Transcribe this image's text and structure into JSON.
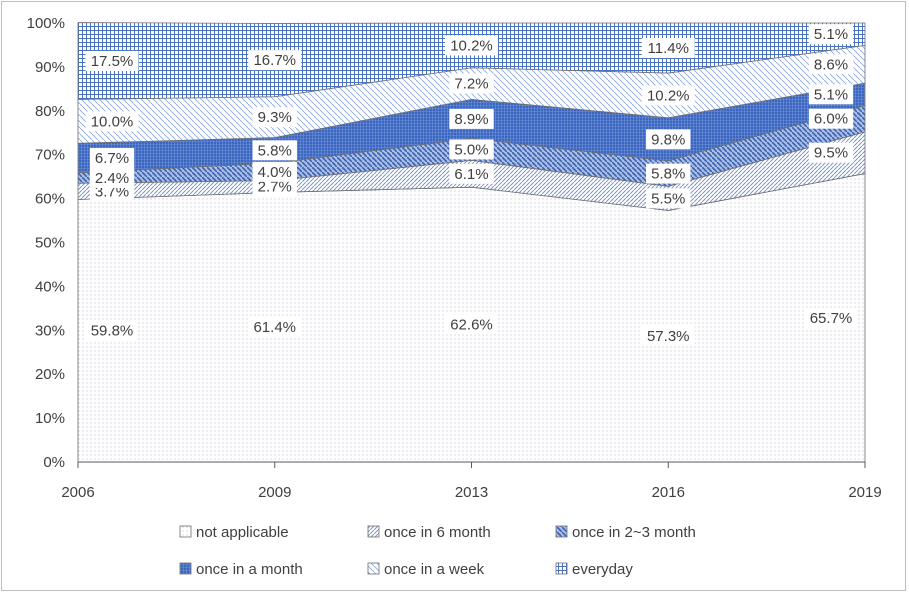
{
  "chart_data": {
    "type": "area",
    "stacked": true,
    "categories": [
      "2006",
      "2009",
      "2013",
      "2016",
      "2019"
    ],
    "series": [
      {
        "name": "not applicable",
        "values": [
          59.8,
          61.4,
          62.6,
          57.3,
          65.7
        ],
        "labels": [
          "59.8%",
          "61.4%",
          "62.6%",
          "57.3%",
          "65.7%"
        ],
        "color": "#dde3ee",
        "pattern": "dots"
      },
      {
        "name": "once in 6 month",
        "values": [
          3.7,
          2.7,
          6.1,
          5.5,
          9.5
        ],
        "labels": [
          "3.7%",
          "2.7%",
          "6.1%",
          "5.5%",
          "9.5%"
        ],
        "color": "#7f9ad3",
        "pattern": "dense-diagonal"
      },
      {
        "name": "once in 2~3 month",
        "values": [
          2.4,
          4.0,
          5.0,
          5.8,
          6.0
        ],
        "labels": [
          "2.4%",
          "4.0%",
          "5.0%",
          "5.8%",
          "6.0%"
        ],
        "color": "#4472c4",
        "pattern": "wide-diagonal"
      },
      {
        "name": "once in a month",
        "values": [
          6.7,
          5.8,
          8.9,
          9.8,
          5.1
        ],
        "labels": [
          "6.7%",
          "5.8%",
          "8.9%",
          "9.8%",
          "5.1%"
        ],
        "color": "#4472c4",
        "pattern": "dark-grid"
      },
      {
        "name": "once in a week",
        "values": [
          10.0,
          9.3,
          7.2,
          10.2,
          8.6
        ],
        "labels": [
          "10.0%",
          "9.3%",
          "7.2%",
          "10.2%",
          "8.6%"
        ],
        "color": "#8ea9db",
        "pattern": "light-diagonal"
      },
      {
        "name": "everyday",
        "values": [
          17.5,
          16.7,
          10.2,
          11.4,
          5.1
        ],
        "labels": [
          "17.5%",
          "16.7%",
          "10.2%",
          "11.4%",
          "5.1%"
        ],
        "color": "#5b7fc8",
        "pattern": "grid"
      }
    ],
    "y_ticks": [
      "0%",
      "10%",
      "20%",
      "30%",
      "40%",
      "50%",
      "60%",
      "70%",
      "80%",
      "90%",
      "100%"
    ],
    "ylim": [
      0,
      100
    ],
    "grid": false,
    "legend_position": "bottom",
    "title": "",
    "xlabel": "",
    "ylabel": ""
  }
}
